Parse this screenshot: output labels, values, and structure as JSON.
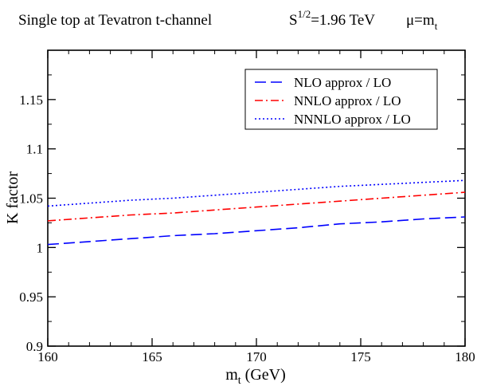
{
  "chart_data": {
    "type": "line",
    "title": {
      "main": "Single top at  Tevatron   t-channel",
      "energy_prefix": "S",
      "energy_superscript": "1/2",
      "energy_value": "=1.96 TeV",
      "scale_prefix": "μ=m",
      "scale_subscript": "t"
    },
    "xlabel": {
      "main": "m",
      "subscript": "t",
      "suffix": " (GeV)"
    },
    "ylabel": "K  factor",
    "xlim": [
      160,
      180
    ],
    "ylim": [
      0.9,
      1.2
    ],
    "x_ticks": [
      160,
      165,
      170,
      175,
      180
    ],
    "x_tick_labels": [
      "160",
      "165",
      "170",
      "175",
      "180"
    ],
    "y_ticks": [
      0.9,
      0.95,
      1.0,
      1.05,
      1.1,
      1.15
    ],
    "y_tick_labels": [
      "0.9",
      "0.95",
      "1",
      "1.05",
      "1.1",
      "1.15"
    ],
    "grid": false,
    "legend_position": "top-right",
    "series": [
      {
        "name": "NLO approx / LO",
        "color": "#0000ff",
        "style": "dashed",
        "x": [
          160,
          162,
          164,
          166,
          168,
          170,
          172,
          174,
          176,
          178,
          180
        ],
        "y": [
          1.003,
          1.006,
          1.009,
          1.012,
          1.014,
          1.017,
          1.02,
          1.024,
          1.026,
          1.029,
          1.031
        ]
      },
      {
        "name": "NNLO approx / LO",
        "color": "#ff0000",
        "style": "dash-dot",
        "x": [
          160,
          162,
          164,
          166,
          168,
          170,
          172,
          174,
          176,
          178,
          180
        ],
        "y": [
          1.027,
          1.03,
          1.033,
          1.035,
          1.038,
          1.041,
          1.044,
          1.047,
          1.05,
          1.053,
          1.056
        ]
      },
      {
        "name": "NNNLO approx / LO",
        "color": "#0000ff",
        "style": "dotted",
        "x": [
          160,
          162,
          164,
          166,
          168,
          170,
          172,
          174,
          176,
          178,
          180
        ],
        "y": [
          1.042,
          1.045,
          1.048,
          1.05,
          1.053,
          1.056,
          1.059,
          1.062,
          1.064,
          1.066,
          1.068
        ]
      }
    ]
  }
}
